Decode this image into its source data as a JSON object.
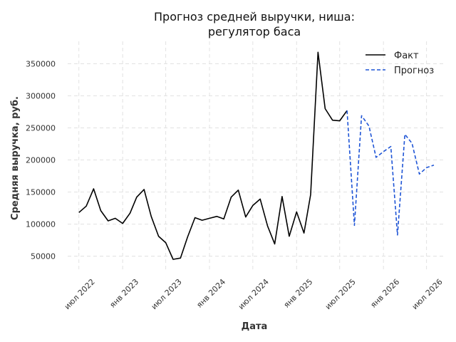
{
  "chart_data": {
    "type": "line",
    "title_lines": [
      "Прогноз средней выручки, ниша:",
      "регулятор баса"
    ],
    "xlabel": "Дата",
    "ylabel": "Средняя выручка, руб.",
    "grid": true,
    "legend_placement": "top-right",
    "ylim": [
      25000,
      385000
    ],
    "xlim": [
      "2022-05-15",
      "2026-09-15"
    ],
    "yticks": [
      50000,
      100000,
      150000,
      200000,
      250000,
      300000,
      350000
    ],
    "xticks": [
      {
        "date": "2022-07-01",
        "label": "июл 2022"
      },
      {
        "date": "2023-01-01",
        "label": "янв 2023"
      },
      {
        "date": "2023-07-01",
        "label": "июл 2023"
      },
      {
        "date": "2024-01-01",
        "label": "янв 2024"
      },
      {
        "date": "2024-07-01",
        "label": "июл 2024"
      },
      {
        "date": "2025-01-01",
        "label": "янв 2025"
      },
      {
        "date": "2025-07-01",
        "label": "июл 2025"
      },
      {
        "date": "2026-01-01",
        "label": "янв 2026"
      },
      {
        "date": "2026-07-01",
        "label": "июл 2026"
      }
    ],
    "series": [
      {
        "name": "Факт",
        "color": "#000000",
        "dashed": false,
        "points": [
          [
            "2022-07-01",
            118000
          ],
          [
            "2022-08-01",
            128000
          ],
          [
            "2022-09-01",
            155000
          ],
          [
            "2022-10-01",
            121000
          ],
          [
            "2022-11-01",
            105000
          ],
          [
            "2022-12-01",
            109000
          ],
          [
            "2023-01-01",
            101000
          ],
          [
            "2023-02-01",
            117000
          ],
          [
            "2023-03-01",
            142000
          ],
          [
            "2023-04-01",
            154000
          ],
          [
            "2023-05-01",
            112000
          ],
          [
            "2023-06-01",
            81000
          ],
          [
            "2023-07-01",
            71000
          ],
          [
            "2023-08-01",
            45000
          ],
          [
            "2023-09-01",
            47000
          ],
          [
            "2023-10-01",
            80000
          ],
          [
            "2023-11-01",
            110000
          ],
          [
            "2023-12-01",
            106000
          ],
          [
            "2024-01-01",
            109000
          ],
          [
            "2024-02-01",
            112000
          ],
          [
            "2024-03-01",
            108000
          ],
          [
            "2024-04-01",
            142000
          ],
          [
            "2024-05-01",
            153000
          ],
          [
            "2024-06-01",
            111000
          ],
          [
            "2024-07-01",
            129000
          ],
          [
            "2024-08-01",
            139000
          ],
          [
            "2024-09-01",
            97000
          ],
          [
            "2024-10-01",
            69000
          ],
          [
            "2024-11-01",
            143000
          ],
          [
            "2024-12-01",
            81000
          ],
          [
            "2025-01-01",
            119000
          ],
          [
            "2025-02-01",
            86000
          ],
          [
            "2025-03-01",
            146000
          ],
          [
            "2025-04-01",
            368000
          ],
          [
            "2025-05-01",
            280000
          ],
          [
            "2025-06-01",
            262000
          ],
          [
            "2025-07-01",
            261000
          ],
          [
            "2025-08-01",
            277000
          ]
        ]
      },
      {
        "name": "Прогноз",
        "color": "#1f55d6",
        "dashed": true,
        "points": [
          [
            "2025-08-01",
            277000
          ],
          [
            "2025-09-01",
            98000
          ],
          [
            "2025-10-01",
            269000
          ],
          [
            "2025-11-01",
            253000
          ],
          [
            "2025-12-01",
            204000
          ],
          [
            "2026-01-01",
            213000
          ],
          [
            "2026-02-01",
            221000
          ],
          [
            "2026-03-01",
            83000
          ],
          [
            "2026-04-01",
            240000
          ],
          [
            "2026-05-01",
            226000
          ],
          [
            "2026-06-01",
            178000
          ],
          [
            "2026-07-01",
            188000
          ],
          [
            "2026-08-01",
            192000
          ]
        ]
      }
    ]
  }
}
